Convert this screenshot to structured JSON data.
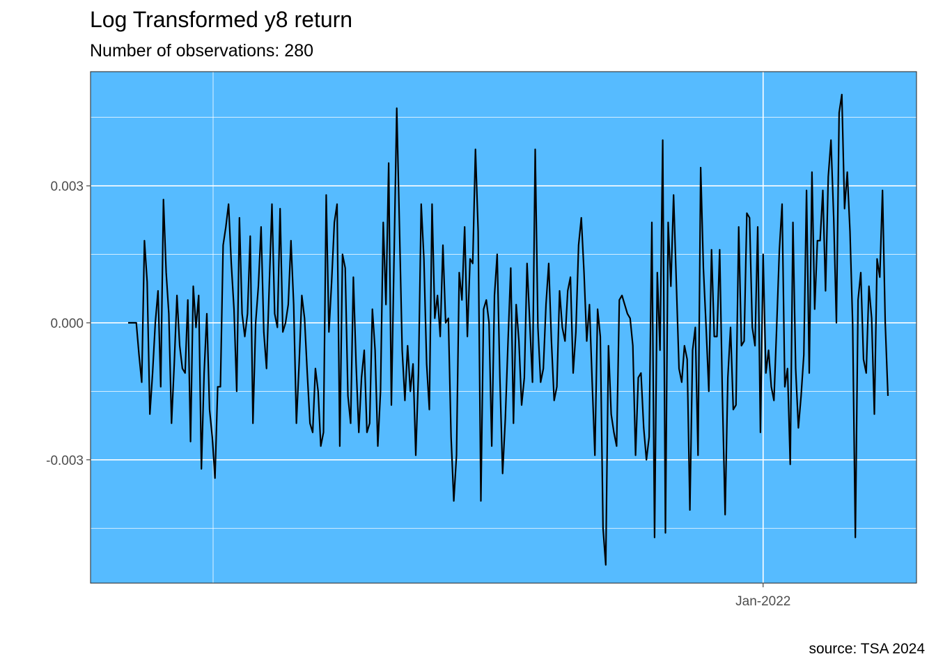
{
  "chart_data": {
    "type": "line",
    "title": "Log Transformed y8 return",
    "subtitle": "Number of observations: 280",
    "caption": "source: TSA 2024",
    "xlabel": "",
    "ylabel": "",
    "x_ticks": [
      {
        "label": "Jan-2022",
        "index": 234
      }
    ],
    "y_ticks": [
      -0.003,
      0.0,
      0.003
    ],
    "y_tick_labels": [
      "-0.003",
      "0.000",
      "0.003"
    ],
    "ylim": [
      -0.0057,
      0.0055
    ],
    "panel_background": "#56bbff",
    "line_color": "#000000",
    "grid": true,
    "legend": "none",
    "series": [
      {
        "values": [
          0.0,
          0.0,
          0.0,
          0.0,
          -0.0007,
          -0.0013,
          0.0018,
          0.0009,
          -0.002,
          -0.0011,
          0.0,
          0.0007,
          -0.0014,
          0.0027,
          0.0011,
          0.0002,
          -0.0022,
          -0.0009,
          0.0006,
          -0.0005,
          -0.001,
          -0.0011,
          0.0005,
          -0.0026,
          0.0008,
          -0.0001,
          0.0006,
          -0.0032,
          -0.0011,
          0.0002,
          -0.0019,
          -0.0025,
          -0.0034,
          -0.0014,
          -0.0014,
          0.0017,
          0.0021,
          0.0026,
          0.0013,
          0.0003,
          -0.0015,
          0.0023,
          0.0002,
          -0.0003,
          0.0002,
          0.0019,
          -0.0022,
          0.0,
          0.0008,
          0.0021,
          -0.0002,
          -0.001,
          0.0008,
          0.0026,
          0.0002,
          -0.0001,
          0.0025,
          -0.0002,
          0.0,
          0.0004,
          0.0018,
          0.0004,
          -0.0022,
          -0.0009,
          0.0006,
          0.0001,
          -0.0011,
          -0.0022,
          -0.0024,
          -0.001,
          -0.0015,
          -0.0027,
          -0.0024,
          0.0028,
          -0.0002,
          0.0009,
          0.0022,
          0.0026,
          -0.0027,
          0.0015,
          0.0012,
          -0.0016,
          -0.0022,
          0.001,
          -0.0009,
          -0.0024,
          -0.0012,
          -0.0006,
          -0.0024,
          -0.0022,
          0.0003,
          -0.0006,
          -0.0027,
          -0.0015,
          0.0022,
          0.0004,
          0.0035,
          -0.0018,
          0.0015,
          0.0047,
          0.0021,
          -0.0006,
          -0.0017,
          -0.0005,
          -0.0015,
          -0.0009,
          -0.0029,
          -0.0011,
          0.0026,
          0.0014,
          -0.0009,
          -0.0019,
          0.0026,
          0.0001,
          0.0006,
          -0.0003,
          0.0017,
          0.0,
          0.0001,
          -0.0025,
          -0.0039,
          -0.0029,
          0.0011,
          0.0005,
          0.0021,
          -0.0003,
          0.0014,
          0.0013,
          0.0038,
          0.002,
          -0.0039,
          0.0003,
          0.0005,
          0.0,
          -0.0027,
          0.0006,
          0.0015,
          -0.0012,
          -0.0033,
          -0.0021,
          -0.0004,
          0.0012,
          -0.0022,
          0.0004,
          -0.0004,
          -0.0018,
          -0.0012,
          0.0013,
          0.0,
          -0.0013,
          0.0038,
          -0.0001,
          -0.0013,
          -0.001,
          0.0004,
          0.0013,
          -0.0004,
          -0.0017,
          -0.0014,
          0.0007,
          -0.0001,
          -0.0004,
          0.0007,
          0.001,
          -0.0011,
          -0.0002,
          0.0017,
          0.0023,
          0.0011,
          -0.0004,
          0.0004,
          -0.0013,
          -0.0029,
          0.0003,
          -0.0003,
          -0.0045,
          -0.0053,
          -0.0005,
          -0.002,
          -0.0024,
          -0.0027,
          0.0005,
          0.0006,
          0.0004,
          0.0002,
          0.0001,
          -0.0005,
          -0.0029,
          -0.0012,
          -0.0011,
          -0.0023,
          -0.003,
          -0.0025,
          0.0022,
          -0.0047,
          0.0011,
          -0.0006,
          0.004,
          -0.0046,
          0.0022,
          0.0008,
          0.0028,
          0.0009,
          -0.001,
          -0.0013,
          -0.0005,
          -0.0008,
          -0.0041,
          -0.0006,
          -0.0001,
          -0.0029,
          0.0034,
          0.0012,
          -0.0001,
          -0.0015,
          0.0016,
          -0.0003,
          -0.0003,
          0.0016,
          -0.0016,
          -0.0042,
          -0.0012,
          -0.0001,
          -0.0019,
          -0.0018,
          0.0021,
          -0.0005,
          -0.0004,
          0.0024,
          0.0023,
          -0.0001,
          -0.0005,
          0.0021,
          -0.0024,
          0.0015,
          -0.0011,
          -0.0006,
          -0.0014,
          -0.0017,
          -0.0001,
          0.0016,
          0.0026,
          -0.0014,
          -0.001,
          -0.0031,
          0.0022,
          -0.001,
          -0.0023,
          -0.0016,
          -0.0007,
          0.0029,
          -0.0011,
          0.0033,
          0.0003,
          0.0018,
          0.0018,
          0.0029,
          0.0007,
          0.0032,
          0.004,
          0.0023,
          0.0,
          0.0046,
          0.005,
          0.0025,
          0.0033,
          0.002,
          0.0,
          -0.0047,
          0.0005,
          0.0011,
          -0.0008,
          -0.0011,
          0.0008,
          0.0001,
          -0.002,
          0.0014,
          0.001,
          0.0029,
          0.0,
          -0.0016
        ]
      }
    ]
  }
}
